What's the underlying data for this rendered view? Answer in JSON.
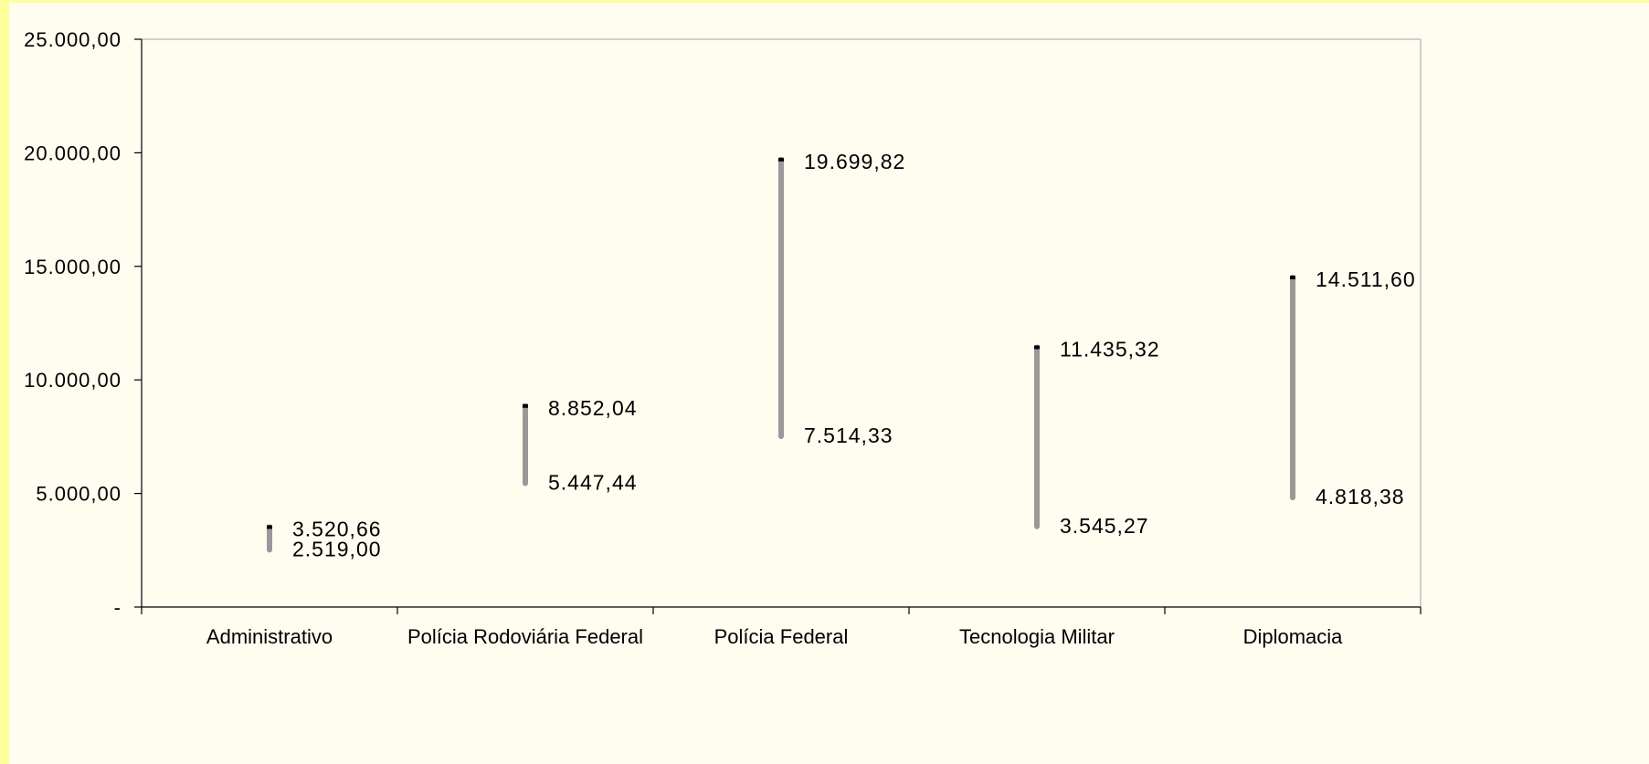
{
  "chart_data": {
    "type": "range-bar",
    "title": "",
    "xlabel": "",
    "ylabel": "",
    "categories": [
      "Administrativo",
      "Polícia Rodoviária Federal",
      "Polícia Federal",
      "Tecnologia Militar",
      "Diplomacia"
    ],
    "ranges": [
      {
        "low": 2519.0,
        "high": 3520.66,
        "low_label": "2.519,00",
        "high_label": "3.520,66"
      },
      {
        "low": 5447.44,
        "high": 8852.04,
        "low_label": "5.447,44",
        "high_label": "8.852,04"
      },
      {
        "low": 7514.33,
        "high": 19699.82,
        "low_label": "7.514,33",
        "high_label": "19.699,82"
      },
      {
        "low": 3545.27,
        "high": 11435.32,
        "low_label": "3.545,27",
        "high_label": "11.435,32"
      },
      {
        "low": 4818.38,
        "high": 14511.6,
        "low_label": "4.818,38",
        "high_label": "14.511,60"
      }
    ],
    "y_ticks": [
      {
        "value": 0,
        "label": "-"
      },
      {
        "value": 5000,
        "label": "5.000,00"
      },
      {
        "value": 10000,
        "label": "10.000,00"
      },
      {
        "value": 15000,
        "label": "15.000,00"
      },
      {
        "value": 20000,
        "label": "20.000,00"
      },
      {
        "value": 25000,
        "label": "25.000,00"
      }
    ],
    "ylim": [
      0,
      25000
    ],
    "grid": false,
    "legend": "none",
    "colors": {
      "range_bar": "#999999",
      "high_marker": "#000000",
      "axis": "#000000",
      "frame": "#c0c0c0",
      "background": "#fffdf0",
      "border": "#ffff99"
    }
  }
}
